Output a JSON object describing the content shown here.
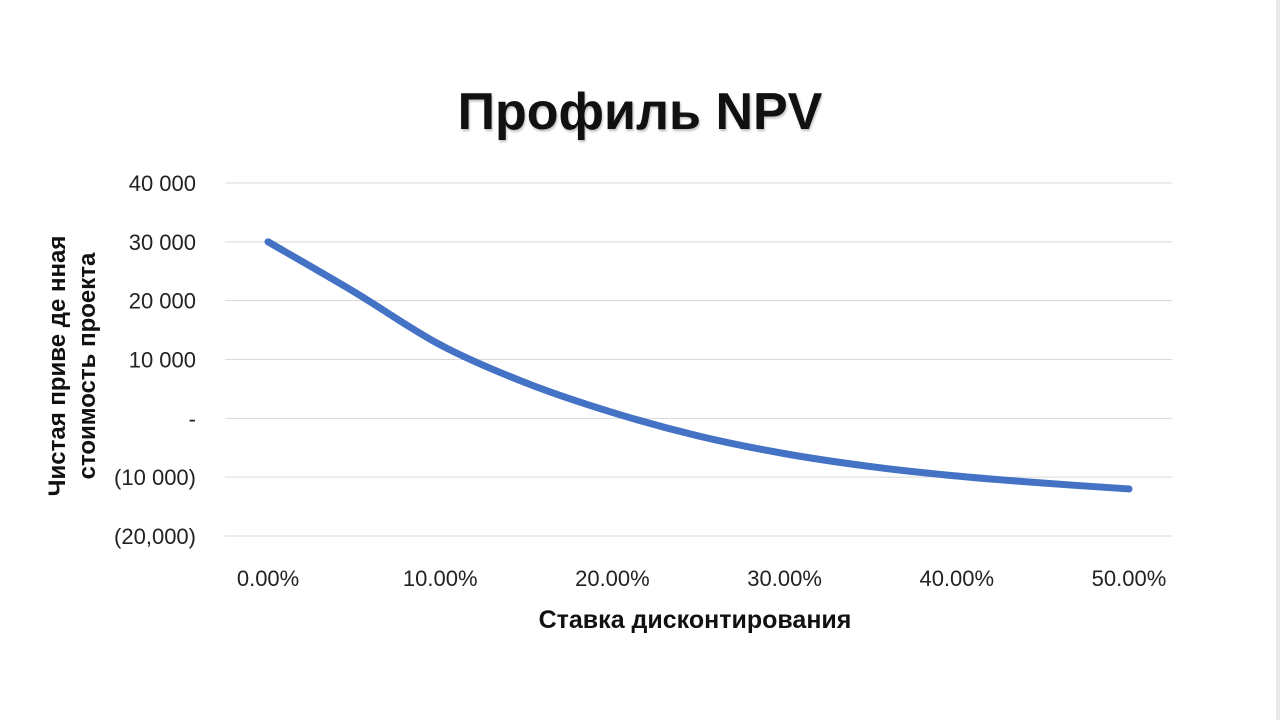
{
  "chart_data": {
    "type": "line",
    "title": "Профиль NPV",
    "xlabel": "Ставка дисконтирования",
    "ylabel_lines": [
      "Чистая приве де нная",
      "стоимость проекта"
    ],
    "x_ticks": [
      {
        "value": 0,
        "label": "0.00%"
      },
      {
        "value": 10,
        "label": "10.00%"
      },
      {
        "value": 20,
        "label": "20.00%"
      },
      {
        "value": 30,
        "label": "30.00%"
      },
      {
        "value": 40,
        "label": "40.00%"
      },
      {
        "value": 50,
        "label": "50.00%"
      }
    ],
    "y_ticks": [
      {
        "value": 40000,
        "label": "40 000"
      },
      {
        "value": 30000,
        "label": "30 000"
      },
      {
        "value": 20000,
        "label": "20 000"
      },
      {
        "value": 10000,
        "label": "10 000"
      },
      {
        "value": 0,
        "label": "-"
      },
      {
        "value": -10000,
        "label": "(10 000)"
      },
      {
        "value": -20000,
        "label": "(20,000)"
      }
    ],
    "xlim": [
      -2.5,
      52.5
    ],
    "ylim": [
      -20000,
      40000
    ],
    "grid": true,
    "series": [
      {
        "color": "#4472C4",
        "x": [
          0,
          5,
          10,
          15,
          20,
          25,
          30,
          35,
          40,
          45,
          50
        ],
        "y": [
          30000,
          21500,
          12500,
          6000,
          1000,
          -3000,
          -6000,
          -8200,
          -9800,
          -11000,
          -12000
        ]
      }
    ]
  }
}
